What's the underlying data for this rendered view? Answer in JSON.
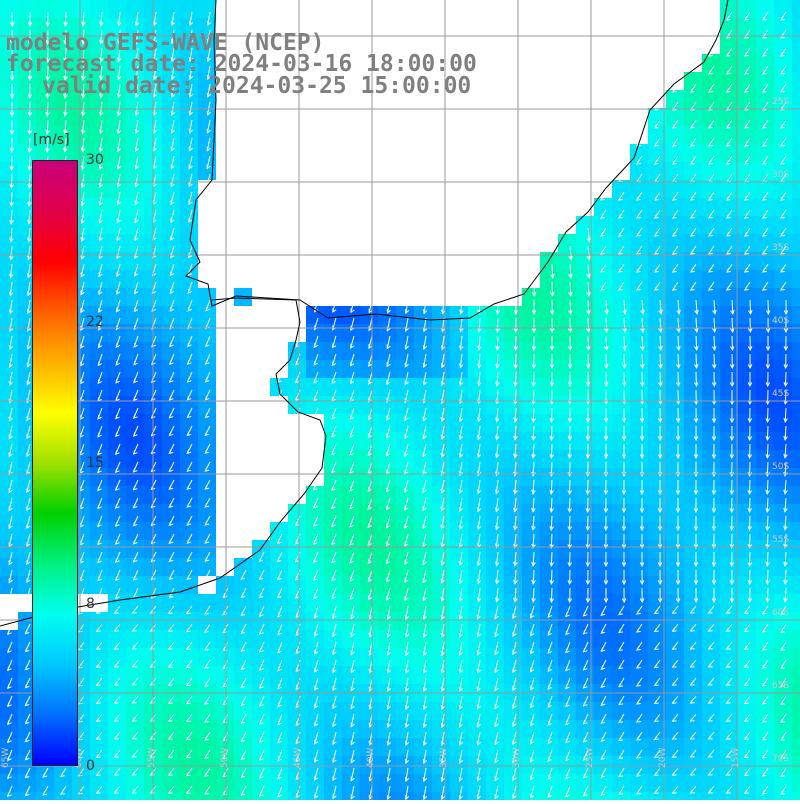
{
  "title": {
    "line1": "modelo GEFS-WAVE (NCEP)",
    "line2": "forecast date: 2024-03-16 18:00:00",
    "line3": "valid date: 2024-03-25 15:00:00"
  },
  "colorbar": {
    "unit": "[m/s]",
    "min": 0,
    "max": 30,
    "ticks": [
      {
        "value": 30,
        "label": "30"
      },
      {
        "value": 22,
        "label": "22"
      },
      {
        "value": 15,
        "label": "15"
      },
      {
        "value": 8,
        "label": "8"
      },
      {
        "value": 0,
        "label": "0"
      }
    ],
    "colors": [
      "#0000ff",
      "#0070ff",
      "#00c8ff",
      "#00ffee",
      "#00f080",
      "#00d000",
      "#a0e000",
      "#ffff00",
      "#ffb000",
      "#ff6000",
      "#ff0000",
      "#e0004a",
      "#c8007a"
    ]
  },
  "map": {
    "lon_labels": [
      "65W",
      "60W",
      "55W",
      "50W",
      "45W",
      "40W",
      "35W",
      "30W",
      "25W",
      "20W",
      "15W"
    ],
    "lat_labels": [
      "25S",
      "30S",
      "35S",
      "40S",
      "45S",
      "50S",
      "55S",
      "60S",
      "65S",
      "70S"
    ],
    "land_color": "#ffffff",
    "coast_color": "#000000",
    "grid_color": "#999999",
    "arrow_color": "#ffffff"
  }
}
